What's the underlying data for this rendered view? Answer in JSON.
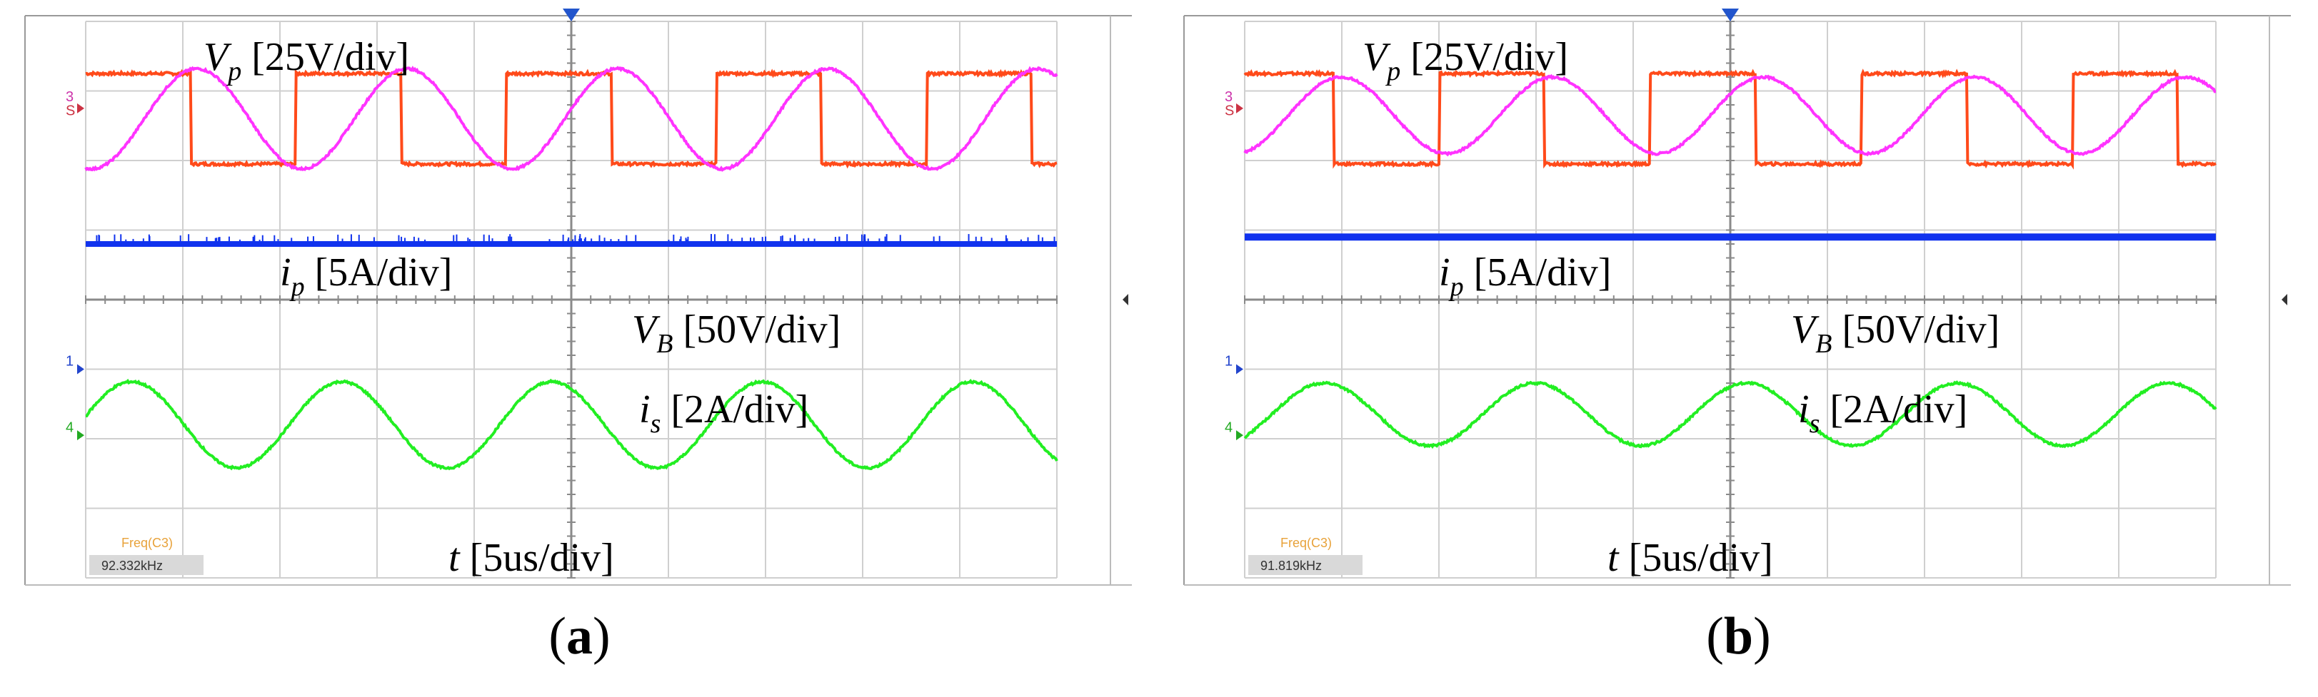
{
  "chart_data": [
    {
      "type": "line",
      "title": "",
      "caption": "a",
      "axis_labels": {
        "vp": "V",
        "vp_sub": "p",
        "vp_scale": " [25V/div]",
        "ip": "i",
        "ip_sub": "p",
        "ip_scale": " [5A/div]",
        "vb": "V",
        "vb_sub": "B",
        "vb_scale": " [50V/div]",
        "is": "i",
        "is_sub": "s",
        "is_scale": " [2A/div]",
        "t": "t",
        "t_scale": " [5us/div]"
      },
      "grid": true,
      "divisions": {
        "x": 10,
        "y": 8
      },
      "channel_markers": [
        "3",
        "S",
        "1",
        "4"
      ],
      "measurement": {
        "label": "Freq(C3)",
        "value": "92.332kHz"
      },
      "series": [
        {
          "name": "Vp",
          "shape": "square",
          "freq_cycles_per_div": 0.462,
          "amplitude_div": 0.65,
          "offset_div": 2.6,
          "phase": 0.0
        },
        {
          "name": "ip",
          "shape": "sine",
          "freq_cycles_per_div": 0.462,
          "amplitude_div": 0.72,
          "offset_div": 2.6,
          "phase": -1.75
        },
        {
          "name": "VB",
          "shape": "flat",
          "offset_div": 0.8
        },
        {
          "name": "is",
          "shape": "sine",
          "freq_cycles_per_div": 0.462,
          "amplitude_div": 0.62,
          "offset_div": -1.8,
          "phase": 0.2
        }
      ],
      "colors": {
        "vp": "#ff4a1a",
        "ip": "#ff33ff",
        "vb": "#1133ee",
        "is": "#22ee22"
      }
    },
    {
      "type": "line",
      "title": "",
      "caption": "b",
      "axis_labels": {
        "vp": "V",
        "vp_sub": "p",
        "vp_scale": " [25V/div]",
        "ip": "i",
        "ip_sub": "p",
        "ip_scale": " [5A/div]",
        "vb": "V",
        "vb_sub": "B",
        "vb_scale": " [50V/div]",
        "is": "i",
        "is_sub": "s",
        "is_scale": " [2A/div]",
        "t": "t",
        "t_scale": " [5us/div]"
      },
      "grid": true,
      "divisions": {
        "x": 10,
        "y": 8
      },
      "channel_markers": [
        "3",
        "S",
        "1",
        "4"
      ],
      "measurement": {
        "label": "Freq(C3)",
        "value": "91.819kHz"
      },
      "series": [
        {
          "name": "Vp",
          "shape": "square",
          "freq_cycles_per_div": 0.46,
          "amplitude_div": 0.65,
          "offset_div": 2.6,
          "phase": 0.5
        },
        {
          "name": "ip",
          "shape": "sine",
          "freq_cycles_per_div": 0.46,
          "amplitude_div": 0.55,
          "offset_div": 2.65,
          "phase": -1.3
        },
        {
          "name": "VB",
          "shape": "flat",
          "offset_div": 0.9
        },
        {
          "name": "is",
          "shape": "sine",
          "freq_cycles_per_div": 0.46,
          "amplitude_div": 0.45,
          "offset_div": -1.65,
          "phase": -0.8
        }
      ],
      "colors": {
        "vp": "#ff4a1a",
        "ip": "#ff33ff",
        "vb": "#1133ee",
        "is": "#22ee22"
      }
    }
  ]
}
